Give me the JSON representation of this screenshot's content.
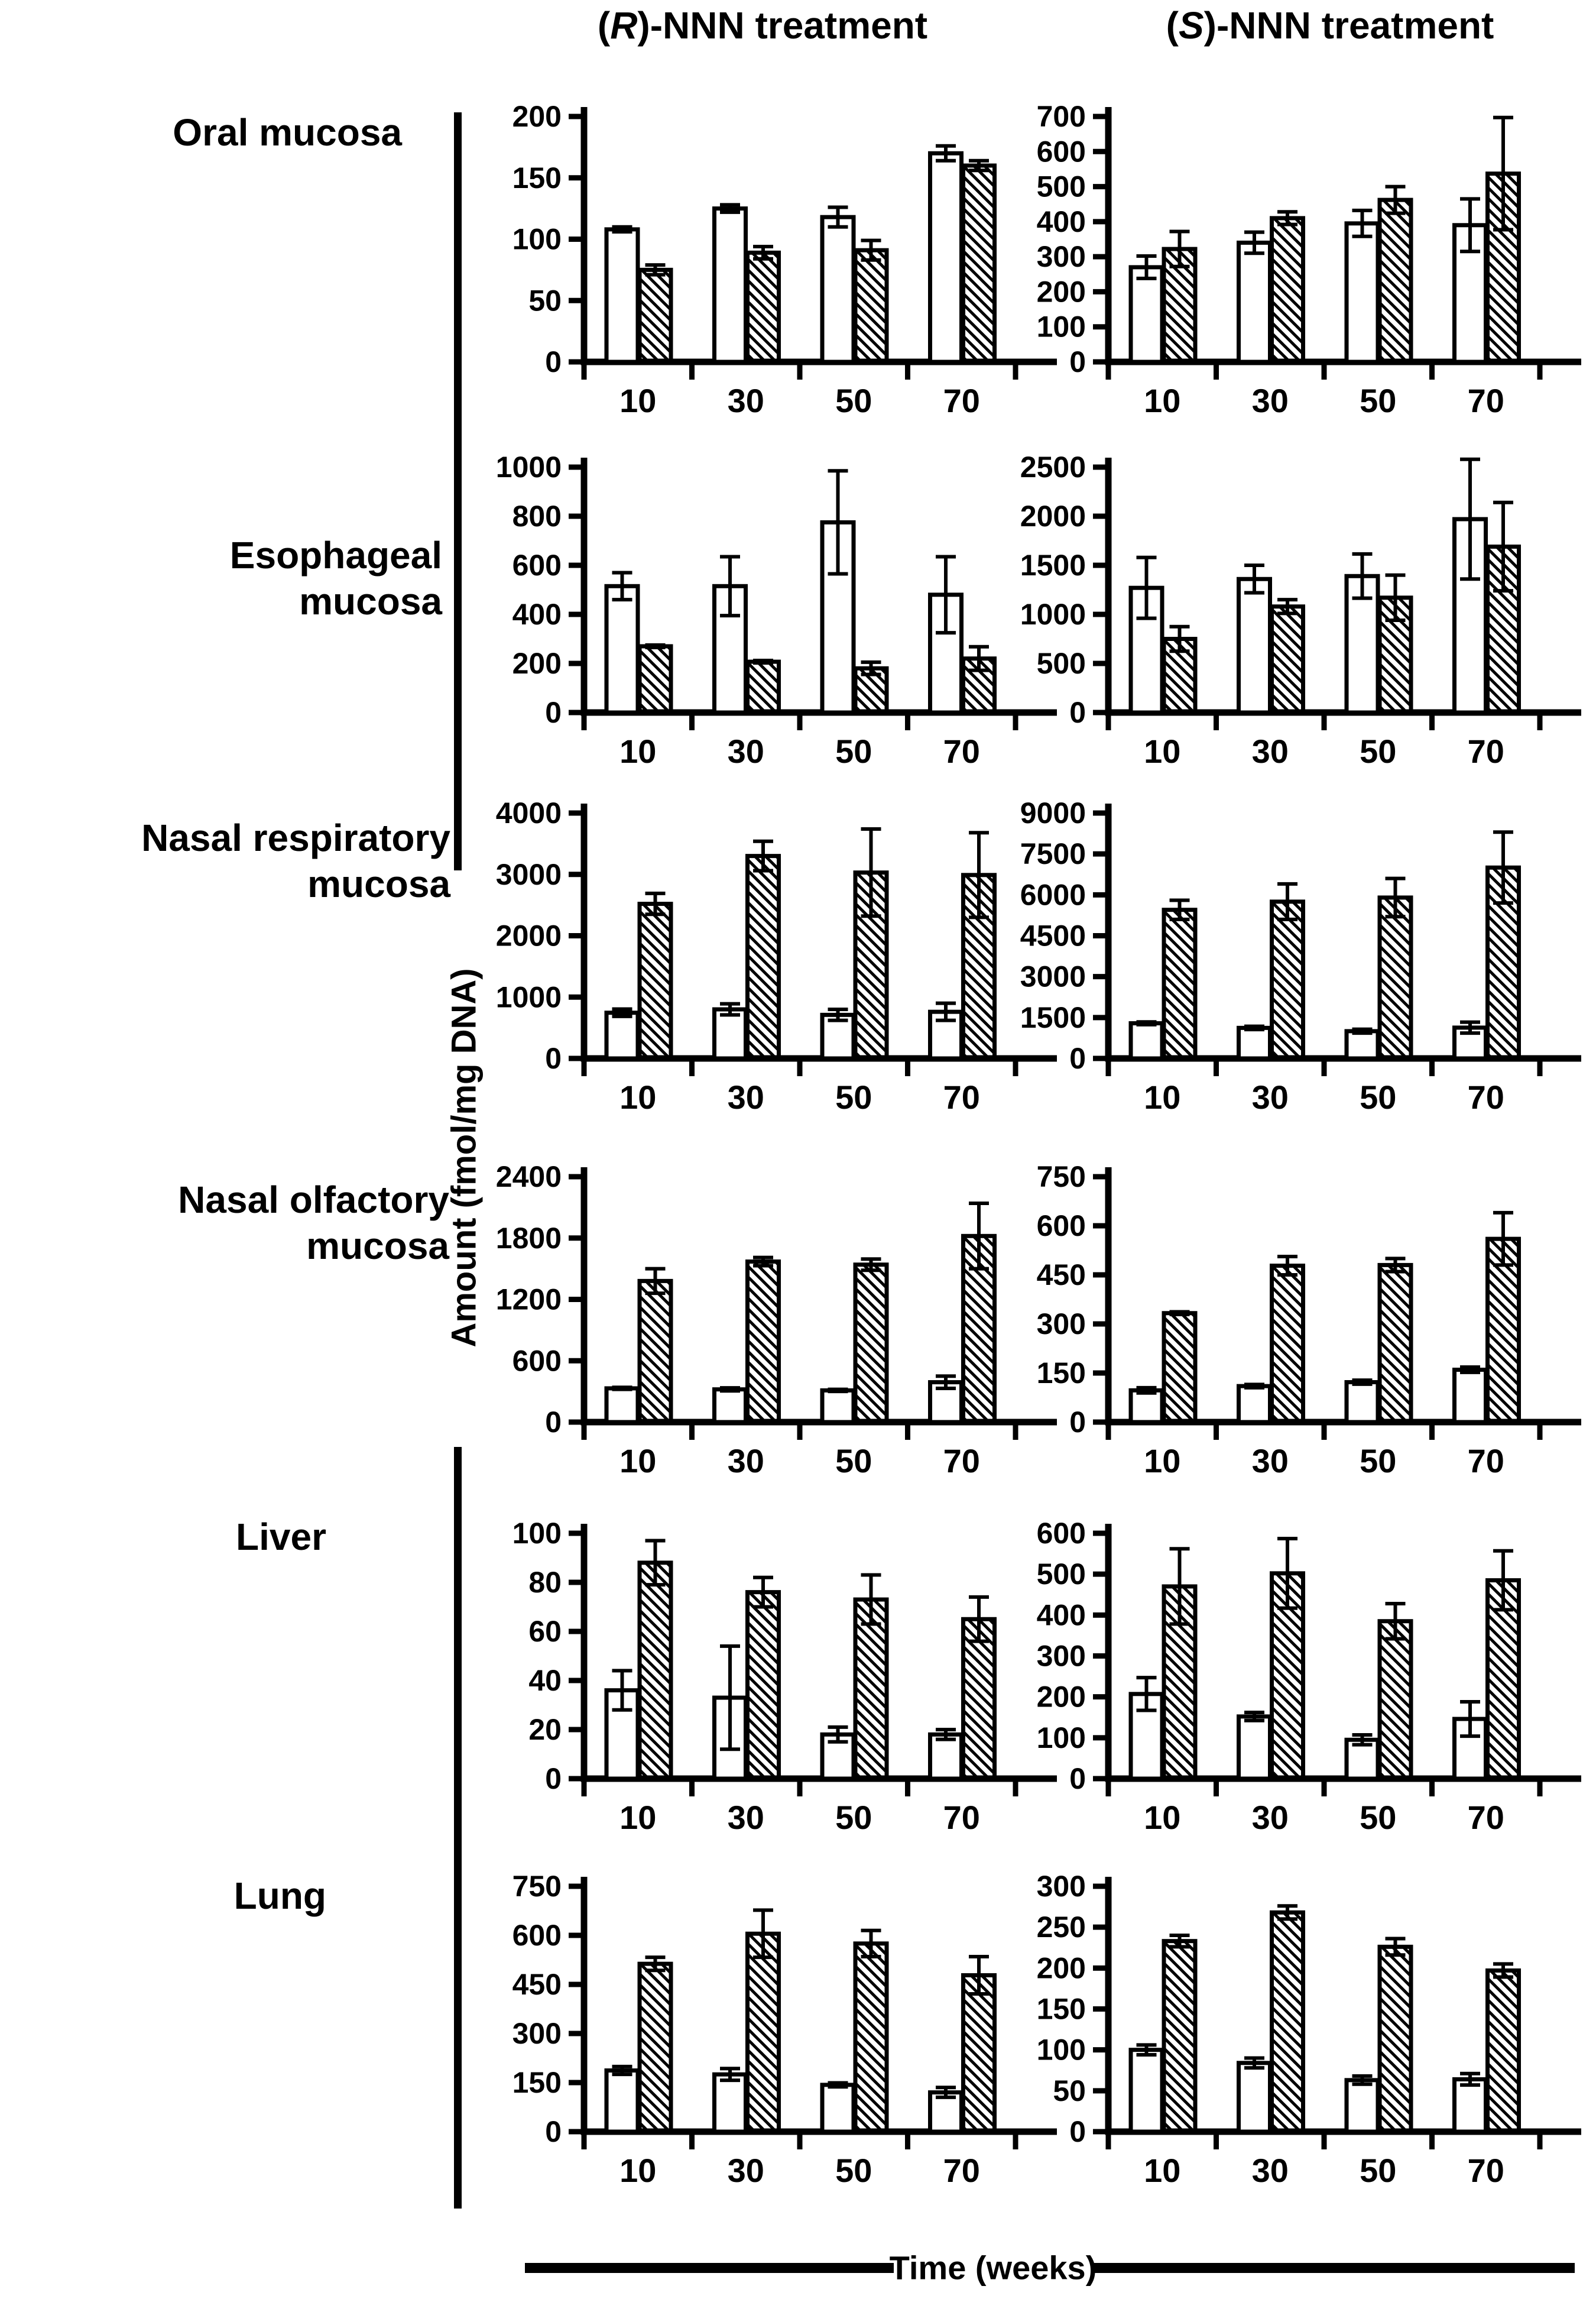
{
  "figure": {
    "colors": {
      "ink": "#000000",
      "paper": "#ffffff"
    },
    "column_titles": [
      {
        "pre": "(",
        "emph": "R",
        "post": ")-NNN treatment"
      },
      {
        "pre": "(",
        "emph": "S",
        "post": ")-NNN treatment"
      }
    ],
    "y_axis_label": "Amount (fmol/mg DNA)",
    "x_axis_label": "Time (weeks)",
    "row_labels": [
      {
        "lines": [
          "Oral mucosa"
        ]
      },
      {
        "lines": [
          "Esophageal",
          "mucosa"
        ]
      },
      {
        "lines": [
          "Nasal respiratory",
          "mucosa"
        ]
      },
      {
        "lines": [
          "Nasal olfactory",
          "mucosa"
        ]
      },
      {
        "lines": [
          "Liver"
        ]
      },
      {
        "lines": [
          "Lung"
        ]
      }
    ]
  },
  "chart_data": [
    {
      "type": "bar",
      "tissue": "Oral mucosa",
      "treatment": "(R)-NNN",
      "row": 0,
      "col": 0,
      "x": [
        10,
        30,
        50,
        70
      ],
      "ylim": [
        0,
        200
      ],
      "ystep": 50,
      "series": [
        {
          "pattern": "open",
          "values": [
            108,
            125,
            118,
            170
          ],
          "errors": [
            2,
            3,
            8,
            6
          ]
        },
        {
          "pattern": "hatched",
          "values": [
            75,
            89,
            91,
            160
          ],
          "errors": [
            4,
            5,
            8,
            4
          ]
        }
      ]
    },
    {
      "type": "bar",
      "tissue": "Oral mucosa",
      "treatment": "(S)-NNN",
      "row": 0,
      "col": 1,
      "x": [
        10,
        30,
        50,
        70
      ],
      "ylim": [
        0,
        700
      ],
      "ystep": 100,
      "series": [
        {
          "pattern": "open",
          "values": [
            270,
            340,
            395,
            390
          ],
          "errors": [
            32,
            30,
            37,
            75
          ]
        },
        {
          "pattern": "hatched",
          "values": [
            322,
            410,
            462,
            537
          ],
          "errors": [
            50,
            18,
            38,
            160
          ]
        }
      ]
    },
    {
      "type": "bar",
      "tissue": "Esophageal mucosa",
      "treatment": "(R)-NNN",
      "row": 1,
      "col": 0,
      "x": [
        10,
        30,
        50,
        70
      ],
      "ylim": [
        0,
        1000
      ],
      "ystep": 200,
      "series": [
        {
          "pattern": "open",
          "values": [
            515,
            515,
            775,
            480
          ],
          "errors": [
            55,
            120,
            210,
            155
          ]
        },
        {
          "pattern": "hatched",
          "values": [
            270,
            207,
            180,
            220
          ],
          "errors": [
            5,
            5,
            25,
            48
          ]
        }
      ]
    },
    {
      "type": "bar",
      "tissue": "Esophageal mucosa",
      "treatment": "(S)-NNN",
      "row": 1,
      "col": 1,
      "x": [
        10,
        30,
        50,
        70
      ],
      "ylim": [
        0,
        2500
      ],
      "ystep": 500,
      "series": [
        {
          "pattern": "open",
          "values": [
            1270,
            1360,
            1390,
            1970
          ],
          "errors": [
            310,
            140,
            225,
            610
          ]
        },
        {
          "pattern": "hatched",
          "values": [
            750,
            1080,
            1170,
            1690
          ],
          "errors": [
            125,
            70,
            230,
            450
          ]
        }
      ]
    },
    {
      "type": "bar",
      "tissue": "Nasal respiratory mucosa",
      "treatment": "(R)-NNN",
      "row": 2,
      "col": 0,
      "x": [
        10,
        30,
        50,
        70
      ],
      "ylim": [
        0,
        4000
      ],
      "ystep": 1000,
      "series": [
        {
          "pattern": "open",
          "values": [
            745,
            800,
            710,
            760
          ],
          "errors": [
            60,
            90,
            90,
            140
          ]
        },
        {
          "pattern": "hatched",
          "values": [
            2520,
            3300,
            3030,
            2990
          ],
          "errors": [
            170,
            240,
            710,
            690
          ]
        }
      ]
    },
    {
      "type": "bar",
      "tissue": "Nasal respiratory mucosa",
      "treatment": "(S)-NNN",
      "row": 2,
      "col": 1,
      "x": [
        10,
        30,
        50,
        70
      ],
      "ylim": [
        0,
        9000
      ],
      "ystep": 1500,
      "series": [
        {
          "pattern": "open",
          "values": [
            1290,
            1120,
            1000,
            1130
          ],
          "errors": [
            50,
            60,
            70,
            200
          ]
        },
        {
          "pattern": "hatched",
          "values": [
            5450,
            5750,
            5900,
            7000
          ],
          "errors": [
            350,
            650,
            700,
            1300
          ]
        }
      ]
    },
    {
      "type": "bar",
      "tissue": "Nasal olfactory mucosa",
      "treatment": "(R)-NNN",
      "row": 3,
      "col": 0,
      "x": [
        10,
        30,
        50,
        70
      ],
      "ylim": [
        0,
        2400
      ],
      "ystep": 600,
      "series": [
        {
          "pattern": "open",
          "values": [
            330,
            320,
            310,
            390
          ],
          "errors": [
            10,
            15,
            10,
            60
          ]
        },
        {
          "pattern": "hatched",
          "values": [
            1380,
            1570,
            1540,
            1820
          ],
          "errors": [
            120,
            40,
            55,
            320
          ]
        }
      ]
    },
    {
      "type": "bar",
      "tissue": "Nasal olfactory mucosa",
      "treatment": "(S)-NNN",
      "row": 3,
      "col": 1,
      "x": [
        10,
        30,
        50,
        70
      ],
      "ylim": [
        0,
        750
      ],
      "ystep": 150,
      "series": [
        {
          "pattern": "open",
          "values": [
            97,
            110,
            122,
            160
          ],
          "errors": [
            8,
            5,
            6,
            8
          ]
        },
        {
          "pattern": "hatched",
          "values": [
            333,
            478,
            480,
            560
          ],
          "errors": [
            4,
            28,
            20,
            80
          ]
        }
      ]
    },
    {
      "type": "bar",
      "tissue": "Liver",
      "treatment": "(R)-NNN",
      "row": 4,
      "col": 0,
      "x": [
        10,
        30,
        50,
        70
      ],
      "ylim": [
        0,
        100
      ],
      "ystep": 20,
      "series": [
        {
          "pattern": "open",
          "values": [
            36,
            33,
            18,
            18
          ],
          "errors": [
            8,
            21,
            3,
            2
          ]
        },
        {
          "pattern": "hatched",
          "values": [
            88,
            76,
            73,
            65
          ],
          "errors": [
            9,
            6,
            10,
            9
          ]
        }
      ]
    },
    {
      "type": "bar",
      "tissue": "Liver",
      "treatment": "(S)-NNN",
      "row": 4,
      "col": 1,
      "x": [
        10,
        30,
        50,
        70
      ],
      "ylim": [
        0,
        600
      ],
      "ystep": 100,
      "series": [
        {
          "pattern": "open",
          "values": [
            207,
            152,
            95,
            146
          ],
          "errors": [
            40,
            10,
            12,
            42
          ]
        },
        {
          "pattern": "hatched",
          "values": [
            470,
            502,
            385,
            485
          ],
          "errors": [
            92,
            85,
            43,
            72
          ]
        }
      ]
    },
    {
      "type": "bar",
      "tissue": "Lung",
      "treatment": "(R)-NNN",
      "row": 5,
      "col": 0,
      "x": [
        10,
        30,
        50,
        70
      ],
      "ylim": [
        0,
        750
      ],
      "ystep": 150,
      "series": [
        {
          "pattern": "open",
          "values": [
            187,
            175,
            143,
            120
          ],
          "errors": [
            12,
            18,
            6,
            15
          ]
        },
        {
          "pattern": "hatched",
          "values": [
            513,
            605,
            575,
            478
          ],
          "errors": [
            20,
            72,
            40,
            57
          ]
        }
      ]
    },
    {
      "type": "bar",
      "tissue": "Lung",
      "treatment": "(S)-NNN",
      "row": 5,
      "col": 1,
      "x": [
        10,
        30,
        50,
        70
      ],
      "ylim": [
        0,
        300
      ],
      "ystep": 50,
      "series": [
        {
          "pattern": "open",
          "values": [
            100,
            84,
            63,
            64
          ],
          "errors": [
            6,
            6,
            5,
            7
          ]
        },
        {
          "pattern": "hatched",
          "values": [
            233,
            268,
            226,
            197
          ],
          "errors": [
            7,
            8,
            10,
            8
          ]
        }
      ]
    }
  ]
}
